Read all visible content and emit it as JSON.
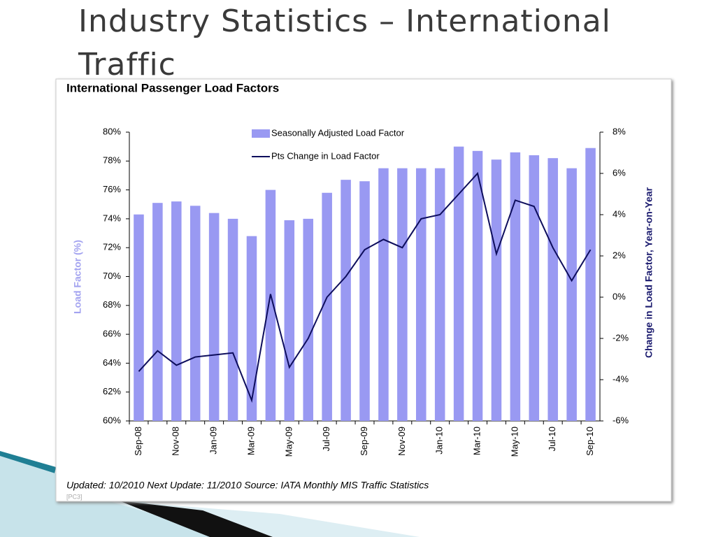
{
  "slide_title": "Industry Statistics – International Traffic",
  "chart_data": {
    "type": "bar",
    "title": "International Passenger Load Factors",
    "categories": [
      "Sep-08",
      null,
      "Nov-08",
      null,
      "Jan-09",
      null,
      "Mar-09",
      null,
      "May-09",
      null,
      "Jul-09",
      null,
      "Sep-09",
      null,
      "Nov-09",
      null,
      "Jan-10",
      null,
      "Mar-10",
      null,
      "May-10",
      null,
      "Jul-10",
      null,
      "Sep-10"
    ],
    "series": [
      {
        "name": "Seasonally Adjusted Load Factor",
        "type": "bar",
        "color": "#9999f2",
        "values": [
          74.3,
          75.1,
          75.2,
          74.9,
          74.4,
          74.0,
          72.8,
          76.0,
          73.9,
          74.0,
          75.8,
          76.7,
          76.6,
          77.5,
          77.5,
          77.5,
          77.5,
          79.0,
          78.7,
          78.1,
          78.6,
          78.4,
          78.2,
          77.5,
          78.9
        ]
      },
      {
        "name": "Pts Change in Load Factor",
        "type": "line",
        "axis": "y2",
        "color": "#0d0d5c",
        "values": [
          -3.6,
          -2.6,
          -3.3,
          -2.9,
          -2.8,
          -2.7,
          -5.0,
          0.15,
          -3.4,
          -2.0,
          0.0,
          1.0,
          2.3,
          2.8,
          2.4,
          3.8,
          4.0,
          5.0,
          6.0,
          2.1,
          4.7,
          4.4,
          2.4,
          0.8,
          2.3
        ]
      }
    ],
    "y_label": "Load Factor (%)",
    "y2_label": "Change in Load Factor, Year-on-Year",
    "ylim": [
      60,
      80
    ],
    "yticks": [
      {
        "value": 60,
        "label": "60%"
      },
      {
        "value": 62,
        "label": "62%"
      },
      {
        "value": 64,
        "label": "64%"
      },
      {
        "value": 66,
        "label": "66%"
      },
      {
        "value": 68,
        "label": "68%"
      },
      {
        "value": 70,
        "label": "70%"
      },
      {
        "value": 72,
        "label": "72%"
      },
      {
        "value": 74,
        "label": "74%"
      },
      {
        "value": 76,
        "label": "76%"
      },
      {
        "value": 78,
        "label": "78%"
      },
      {
        "value": 80,
        "label": "80%"
      }
    ],
    "y2lim": [
      -6,
      8
    ],
    "y2ticks": [
      {
        "value": -6,
        "label": "-6%"
      },
      {
        "value": -4,
        "label": "-4%"
      },
      {
        "value": -2,
        "label": "-2%"
      },
      {
        "value": 0,
        "label": "0%"
      },
      {
        "value": 2,
        "label": "2%"
      },
      {
        "value": 4,
        "label": "4%"
      },
      {
        "value": 6,
        "label": "6%"
      },
      {
        "value": 8,
        "label": "8%"
      }
    ],
    "note": "Updated: 10/2010 Next Update: 11/2010 Source: IATA Monthly MIS Traffic Statistics",
    "tag": "[PC3]"
  }
}
